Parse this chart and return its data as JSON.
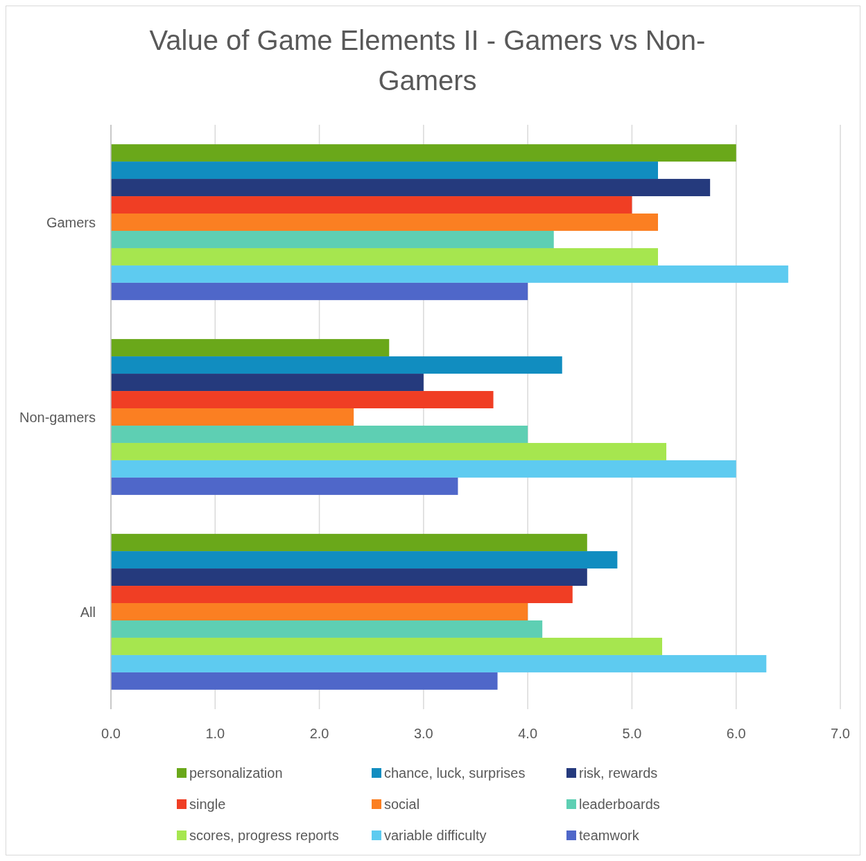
{
  "chart_data": {
    "type": "bar",
    "orientation": "horizontal",
    "title": "Value of Game Elements II - Gamers vs Non-Gamers",
    "categories": [
      "Gamers",
      "Non-gamers",
      "All"
    ],
    "series": [
      {
        "name": "personalization",
        "color": "#6aa81a",
        "values": [
          6.0,
          2.67,
          4.57
        ]
      },
      {
        "name": "chance, luck, surprises",
        "color": "#118dc0",
        "values": [
          5.25,
          4.33,
          4.86
        ]
      },
      {
        "name": "risk, rewards",
        "color": "#253a7d",
        "values": [
          5.75,
          3.0,
          4.57
        ]
      },
      {
        "name": "single",
        "color": "#f03e24",
        "values": [
          5.0,
          3.67,
          4.43
        ]
      },
      {
        "name": "social",
        "color": "#fb7f22",
        "values": [
          5.25,
          2.33,
          4.0
        ]
      },
      {
        "name": "leaderboards",
        "color": "#5ecfb3",
        "values": [
          4.25,
          4.0,
          4.14
        ]
      },
      {
        "name": "scores, progress reports",
        "color": "#a6e64f",
        "values": [
          5.25,
          5.33,
          5.29
        ]
      },
      {
        "name": "variable difficulty",
        "color": "#5ecbf0",
        "values": [
          6.5,
          6.0,
          6.29
        ]
      },
      {
        "name": "teamwork",
        "color": "#4f67c9",
        "values": [
          4.0,
          3.33,
          3.71
        ]
      }
    ],
    "xlim": [
      0,
      7
    ],
    "xticks": [
      {
        "value": 0,
        "label": "0.0"
      },
      {
        "value": 1,
        "label": "1.0"
      },
      {
        "value": 2,
        "label": "2.0"
      },
      {
        "value": 3,
        "label": "3.0"
      },
      {
        "value": 4,
        "label": "4.0"
      },
      {
        "value": 5,
        "label": "5.0"
      },
      {
        "value": 6,
        "label": "6.0"
      },
      {
        "value": 7,
        "label": "7.0"
      }
    ],
    "grid": "x",
    "legend": "bottom"
  }
}
